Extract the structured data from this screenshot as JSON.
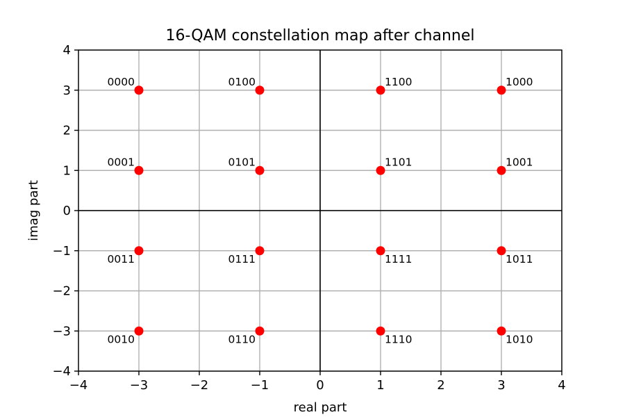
{
  "chart_data": {
    "type": "scatter",
    "title": "16-QAM constellation map after channel",
    "xlabel": "real part",
    "ylabel": "imag part",
    "xlim": [
      -4,
      4
    ],
    "ylim": [
      -4,
      4
    ],
    "xticks": [
      -4,
      -3,
      -2,
      -1,
      0,
      1,
      2,
      3,
      4
    ],
    "yticks": [
      -4,
      -3,
      -2,
      -1,
      0,
      1,
      2,
      3,
      4
    ],
    "xtick_labels": [
      "−4",
      "−3",
      "−2",
      "−1",
      "0",
      "1",
      "2",
      "3",
      "4"
    ],
    "ytick_labels": [
      "−4",
      "−3",
      "−2",
      "−1",
      "0",
      "1",
      "2",
      "3",
      "4"
    ],
    "grid": true,
    "zero_lines": true,
    "marker_color": "#ff0000",
    "points": [
      {
        "x": -3,
        "y": 3,
        "label": "0000"
      },
      {
        "x": -3,
        "y": 1,
        "label": "0001"
      },
      {
        "x": -3,
        "y": -1,
        "label": "0011"
      },
      {
        "x": -3,
        "y": -3,
        "label": "0010"
      },
      {
        "x": -1,
        "y": 3,
        "label": "0100"
      },
      {
        "x": -1,
        "y": 1,
        "label": "0101"
      },
      {
        "x": -1,
        "y": -1,
        "label": "0111"
      },
      {
        "x": -1,
        "y": -3,
        "label": "0110"
      },
      {
        "x": 1,
        "y": 3,
        "label": "1100"
      },
      {
        "x": 1,
        "y": 1,
        "label": "1101"
      },
      {
        "x": 1,
        "y": -1,
        "label": "1111"
      },
      {
        "x": 1,
        "y": -3,
        "label": "1110"
      },
      {
        "x": 3,
        "y": 3,
        "label": "1000"
      },
      {
        "x": 3,
        "y": 1,
        "label": "1001"
      },
      {
        "x": 3,
        "y": -1,
        "label": "1011"
      },
      {
        "x": 3,
        "y": -3,
        "label": "1010"
      }
    ]
  }
}
